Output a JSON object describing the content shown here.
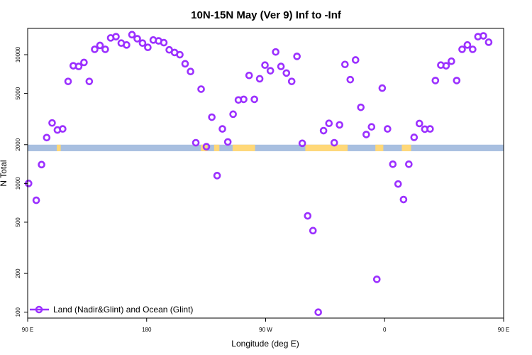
{
  "chart_data": {
    "type": "scatter",
    "title": "10N-15N May (Ver 9)   Inf to -Inf",
    "xlabel": "Longitude (deg E)",
    "ylabel": "N Total",
    "xlim": [
      90,
      450
    ],
    "ylim": [
      90,
      16000
    ],
    "yscale": "log",
    "x_ticks": [
      {
        "value": 90,
        "label": "90 E"
      },
      {
        "value": 180,
        "label": "180"
      },
      {
        "value": 270,
        "label": "90 W"
      },
      {
        "value": 360,
        "label": "0"
      },
      {
        "value": 450,
        "label": "90 E"
      },
      {
        "value": 540,
        "label": "180"
      }
    ],
    "y_ticks": [
      100,
      200,
      500,
      1000,
      2000,
      5000,
      10000
    ],
    "grid": false,
    "legend": {
      "position": "bottom-left",
      "entries": [
        {
          "label": "Land (Nadir&Glint) and Ocean (Glint)",
          "color": "#9b30ff",
          "marker": "circle-open"
        }
      ]
    },
    "colors": {
      "series": "#9b30ff",
      "ocean_band": "#a8bfe0",
      "land_band": "#ffd878"
    },
    "series": [
      {
        "name": "Land (Nadir&Glint) and Ocean (Glint)",
        "points": [
          [
            90.7,
            1000
          ],
          [
            96.5,
            740
          ],
          [
            100.5,
            1400
          ],
          [
            104.4,
            2270
          ],
          [
            108.5,
            2950
          ],
          [
            112.5,
            2600
          ],
          [
            116.5,
            2650
          ],
          [
            120.6,
            6200
          ],
          [
            124.5,
            8200
          ],
          [
            128.6,
            8100
          ],
          [
            132.6,
            8700
          ],
          [
            136.6,
            6200
          ],
          [
            140.7,
            11000
          ],
          [
            144.7,
            11800
          ],
          [
            148.7,
            11000
          ],
          [
            152.8,
            13500
          ],
          [
            156.8,
            13800
          ],
          [
            160.8,
            12300
          ],
          [
            164.8,
            11900
          ],
          [
            168.9,
            14300
          ],
          [
            172.9,
            13300
          ],
          [
            176.9,
            12300
          ],
          [
            180.9,
            11400
          ],
          [
            185,
            13000
          ],
          [
            189,
            12800
          ],
          [
            193,
            12400
          ],
          [
            197.1,
            10900
          ],
          [
            201.1,
            10400
          ],
          [
            205.1,
            10000
          ],
          [
            209.1,
            8500
          ],
          [
            213.2,
            7400
          ],
          [
            217.2,
            2070
          ],
          [
            221.2,
            5400
          ],
          [
            225.2,
            1930
          ],
          [
            229.3,
            3270
          ],
          [
            233.3,
            1150
          ],
          [
            237.3,
            2650
          ],
          [
            241.4,
            2100
          ],
          [
            245.4,
            3450
          ],
          [
            249.4,
            4450
          ],
          [
            253.4,
            4500
          ],
          [
            257.5,
            6900
          ],
          [
            261.5,
            4500
          ],
          [
            265.5,
            6500
          ],
          [
            269.5,
            8300
          ],
          [
            273.6,
            7500
          ],
          [
            277.6,
            10500
          ],
          [
            281.6,
            8100
          ],
          [
            285.7,
            7200
          ],
          [
            289.7,
            6200
          ],
          [
            293.7,
            9700
          ],
          [
            297.7,
            2050
          ],
          [
            301.8,
            560
          ],
          [
            305.8,
            430
          ],
          [
            309.8,
            100
          ],
          [
            313.8,
            2570
          ],
          [
            317.9,
            2930
          ],
          [
            321.9,
            2070
          ],
          [
            325.9,
            2850
          ],
          [
            330,
            8400
          ],
          [
            334,
            6400
          ],
          [
            338,
            9100
          ],
          [
            342,
            3900
          ],
          [
            346.1,
            2400
          ],
          [
            350.1,
            2750
          ],
          [
            354.1,
            180
          ],
          [
            358.2,
            5500
          ],
          [
            362.2,
            2650
          ],
          [
            366.2,
            1410
          ],
          [
            370.2,
            990
          ],
          [
            374.3,
            750
          ],
          [
            378.3,
            1410
          ],
          [
            382.3,
            2280
          ],
          [
            386.3,
            2920
          ],
          [
            390.4,
            2640
          ],
          [
            394.4,
            2650
          ],
          [
            398.4,
            6300
          ],
          [
            402.5,
            8300
          ],
          [
            406.5,
            8200
          ],
          [
            410.5,
            8900
          ],
          [
            414.5,
            6300
          ],
          [
            418.6,
            11000
          ],
          [
            422.6,
            11900
          ],
          [
            426.6,
            11000
          ],
          [
            430.6,
            13800
          ],
          [
            434.7,
            14000
          ],
          [
            438.7,
            12500
          ]
        ]
      }
    ]
  }
}
